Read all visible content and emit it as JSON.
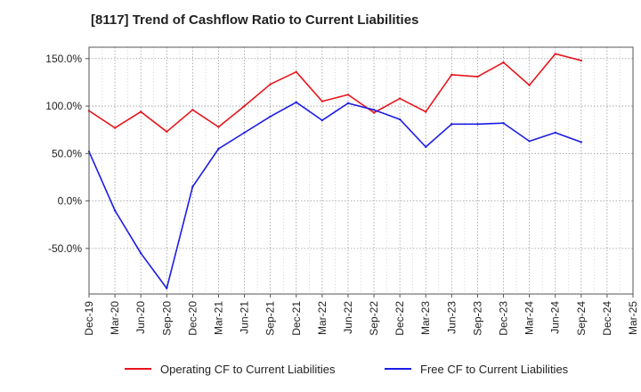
{
  "chart_data": {
    "type": "line",
    "title": "[8117]  Trend of Cashflow Ratio to Current Liabilities",
    "xlabel": "",
    "ylabel": "",
    "categories": [
      "Dec-19",
      "Mar-20",
      "Jun-20",
      "Sep-20",
      "Dec-20",
      "Mar-21",
      "Jun-21",
      "Sep-21",
      "Dec-21",
      "Mar-22",
      "Jun-22",
      "Sep-22",
      "Dec-22",
      "Mar-23",
      "Jun-23",
      "Sep-23",
      "Dec-23",
      "Mar-24",
      "Jun-24",
      "Sep-24",
      "Dec-24",
      "Mar-25"
    ],
    "ylim": [
      -98,
      162
    ],
    "y_ticks": [
      150,
      100,
      50,
      0,
      -50
    ],
    "y_tick_labels": [
      "150.0%",
      "100.0%",
      "50.0%",
      "0.0%",
      "-50.0%"
    ],
    "grid": true,
    "legend_position": "bottom",
    "series": [
      {
        "name": "Operating CF to Current Liabilities",
        "color": "#e8141b",
        "values": [
          95,
          77,
          94,
          73,
          96,
          78,
          100,
          123,
          136,
          105,
          112,
          93,
          108,
          94,
          133,
          131,
          146,
          122,
          155,
          148,
          null,
          null
        ]
      },
      {
        "name": "Free CF to Current Liabilities",
        "color": "#1c1ce6",
        "values": [
          52,
          -10,
          -55,
          -92,
          15,
          55,
          72,
          89,
          104,
          85,
          103,
          96,
          86,
          57,
          81,
          81,
          82,
          63,
          72,
          62,
          null,
          null
        ]
      }
    ]
  }
}
